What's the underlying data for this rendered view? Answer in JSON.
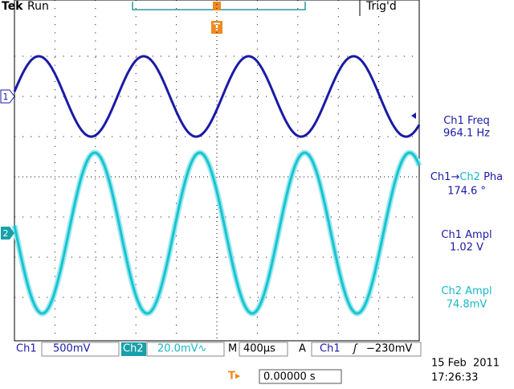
{
  "header": {
    "brand": "Tek",
    "status": "Run",
    "trigger_status": "Trig'd",
    "trigger_marker": "T"
  },
  "channel_markers": [
    "1",
    "2"
  ],
  "measurements": [
    {
      "label": [
        "Ch1 Freq"
      ],
      "value": "964.1 Hz"
    },
    {
      "label": [
        "Ch1→",
        "Ch2",
        " Pha"
      ],
      "value": "174.6 °"
    },
    {
      "label": [
        "Ch1 Ampl"
      ],
      "value": "1.02 V"
    },
    {
      "label": [
        "Ch2 Ampl"
      ],
      "value": "74.8mV"
    }
  ],
  "status_bar": {
    "ch1": "Ch1",
    "ch1_scale": "500mV",
    "ch2": "Ch2",
    "ch2_scale": "20.0mV∿",
    "timebase_label": "M",
    "timebase": "400µs",
    "trigger_label": "A",
    "trigger_source": "Ch1",
    "trigger_slope": "ʃ",
    "trigger_level": "−230mV"
  },
  "trigger_position": {
    "icon": "T▸",
    "value": "0.00000 s"
  },
  "date": "15 Feb  2011",
  "time": "17:26:33"
}
